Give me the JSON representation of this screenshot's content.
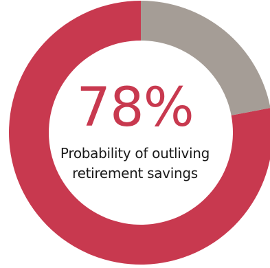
{
  "chart_data": {
    "type": "pie",
    "variant": "donut",
    "slices": [
      {
        "value": 78,
        "color": "#c8394f"
      },
      {
        "value": 22,
        "color": "#a59d96"
      }
    ],
    "center_value": "78%",
    "center_label_lines": [
      "Probability of outliving",
      "retirement savings"
    ]
  }
}
